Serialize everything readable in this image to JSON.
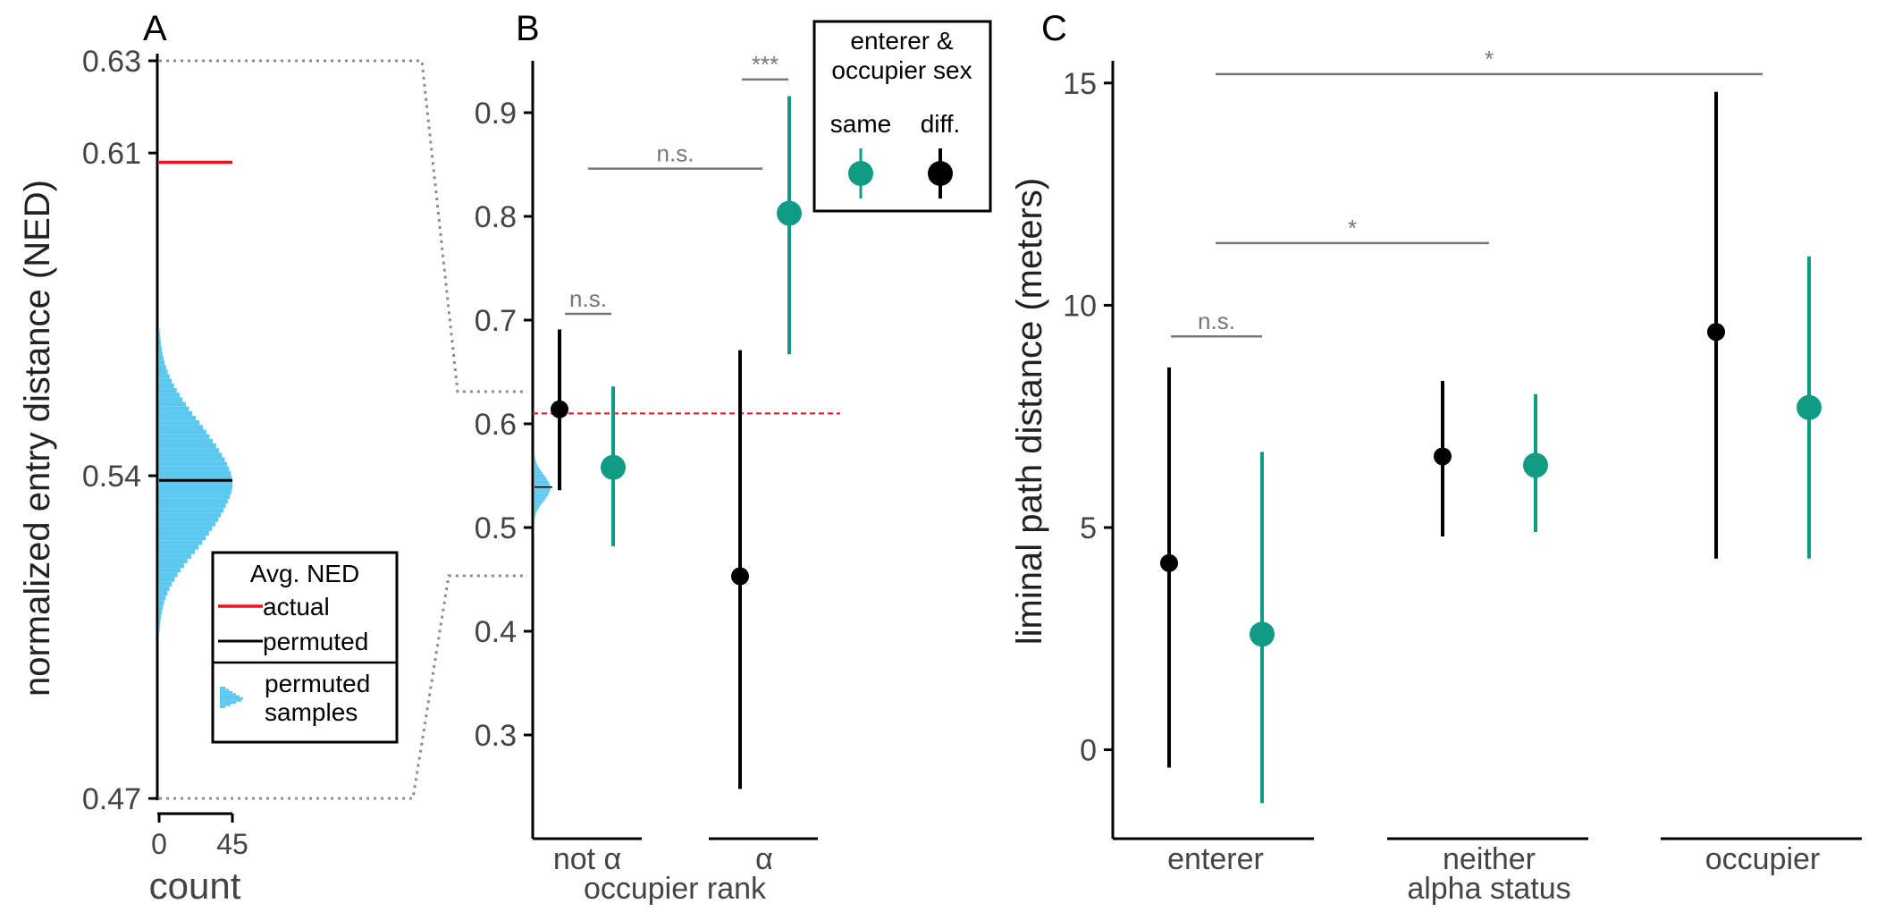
{
  "colors": {
    "same": "#109c84",
    "diff": "#000000",
    "actual": "#e8151b",
    "permuted_samples": "#5bc8ef",
    "bracket": "#777777",
    "connector": "#8c8c8c",
    "axis_text": "#444444"
  },
  "chart_data": [
    {
      "panel": "A",
      "type": "histogram",
      "ylabel": "normalized entry distance (NED)",
      "xlabel": "count",
      "ylim": [
        0.47,
        0.63
      ],
      "y_ticks": [
        "0.47",
        "0.54",
        "0.61",
        "0.63"
      ],
      "x_ticks": [
        "0",
        "45"
      ],
      "xlim": [
        0,
        45
      ],
      "actual_mean": 0.608,
      "permuted_mean": 0.539,
      "histogram": {
        "bin_start": 0.505,
        "bin_width": 0.001,
        "counts": [
          0,
          0.3,
          0.5,
          0.8,
          1.2,
          1.7,
          2.3,
          3.1,
          4,
          5.1,
          6.4,
          7.9,
          9.5,
          11.3,
          13.2,
          15.3,
          17.4,
          19.7,
          22,
          24.3,
          26.5,
          28.6,
          30.6,
          32.5,
          34.6,
          36.4,
          38,
          39.6,
          40.9,
          42.2,
          43.5,
          44.4,
          45,
          45,
          44.7,
          44.1,
          43,
          41.7,
          40.3,
          38.6,
          36.8,
          35,
          33,
          31,
          29,
          26.9,
          24.8,
          22.6,
          20.4,
          18.4,
          16.4,
          14.4,
          12.6,
          10.8,
          9.2,
          7.8,
          6.4,
          5.3,
          4.3,
          3.4,
          2.7,
          2.1,
          1.6,
          1.2,
          0.9,
          0.6,
          0.3
        ]
      },
      "legend": {
        "title": "Avg. NED",
        "items": [
          "actual",
          "permuted",
          "permuted samples"
        ]
      }
    },
    {
      "panel": "B",
      "type": "pointrange",
      "xlabel": "occupier rank",
      "categories": [
        "not α",
        "α"
      ],
      "ylim": [
        0.2,
        0.95
      ],
      "y_ticks": [
        0.3,
        0.4,
        0.5,
        0.6,
        0.7,
        0.8,
        0.9
      ],
      "reference_line": 0.61,
      "series": [
        {
          "name": "same",
          "points": [
            {
              "x": "not α",
              "y": 0.558,
              "lo": 0.482,
              "hi": 0.636
            },
            {
              "x": "α",
              "y": 0.803,
              "lo": 0.667,
              "hi": 0.916
            }
          ]
        },
        {
          "name": "diff.",
          "points": [
            {
              "x": "not α",
              "y": 0.614,
              "lo": 0.536,
              "hi": 0.691
            },
            {
              "x": "α",
              "y": 0.453,
              "lo": 0.248,
              "hi": 0.671
            }
          ]
        }
      ],
      "brackets": [
        {
          "label": "n.s.",
          "from": "not α diff.",
          "to": "not α same",
          "y": 0.706
        },
        {
          "label": "n.s.",
          "from": "not α",
          "to": "α",
          "y": 0.846
        },
        {
          "label": "***",
          "from": "α diff.",
          "to": "α same",
          "y": 0.932
        }
      ],
      "legend": {
        "title_line1": "enterer &",
        "title_line2": "occupier sex",
        "items": [
          "same",
          "diff."
        ]
      }
    },
    {
      "panel": "C",
      "type": "pointrange",
      "ylabel": "liminal path distance (meters)",
      "xlabel": "alpha status",
      "categories": [
        "enterer",
        "neither",
        "occupier"
      ],
      "ylim": [
        -2,
        15.5
      ],
      "y_ticks": [
        0,
        5,
        10,
        15
      ],
      "series": [
        {
          "name": "diff.",
          "points": [
            {
              "x": "enterer",
              "y": 4.2,
              "lo": -0.4,
              "hi": 8.6
            },
            {
              "x": "neither",
              "y": 6.6,
              "lo": 4.8,
              "hi": 8.3
            },
            {
              "x": "occupier",
              "y": 9.4,
              "lo": 4.3,
              "hi": 14.8
            }
          ]
        },
        {
          "name": "same",
          "points": [
            {
              "x": "enterer",
              "y": 2.6,
              "lo": -1.2,
              "hi": 6.7
            },
            {
              "x": "neither",
              "y": 6.4,
              "lo": 4.9,
              "hi": 8.0
            },
            {
              "x": "occupier",
              "y": 7.7,
              "lo": 4.3,
              "hi": 11.1
            }
          ]
        }
      ],
      "brackets": [
        {
          "label": "n.s.",
          "from": "enterer diff.",
          "to": "enterer same",
          "y": 9.3
        },
        {
          "label": "*",
          "from": "enterer",
          "to": "neither",
          "y": 11.4
        },
        {
          "label": "*",
          "from": "enterer",
          "to": "occupier",
          "y": 15.2
        }
      ]
    }
  ],
  "panel_letters": [
    "A",
    "B",
    "C"
  ]
}
